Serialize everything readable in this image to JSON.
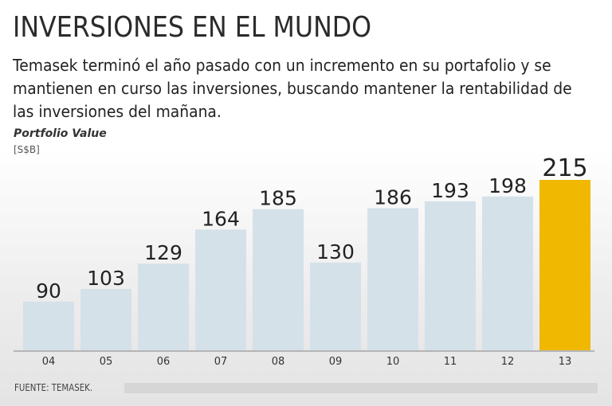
{
  "header": {
    "title": "INVERSIONES EN EL MUNDO",
    "subtitle": "Temasek terminó el año pasado con un incremento en su portafolio y se mantienen en curso las inversiones, buscando mantener la rentabilidad de las inversiones del mañana."
  },
  "chart_data": {
    "type": "bar",
    "title": "INVERSIONES EN EL MUNDO",
    "ylabel": "Portfolio Value",
    "yunit": "[S$B]",
    "xlabel": "",
    "categories": [
      "04",
      "05",
      "06",
      "07",
      "08",
      "09",
      "10",
      "11",
      "12",
      "13"
    ],
    "values": [
      90,
      103,
      129,
      164,
      185,
      130,
      186,
      193,
      198,
      215
    ],
    "ylim": [
      40,
      215
    ],
    "grid": false,
    "colors": {
      "bar": "#d5e1e8",
      "highlight": "#f0b800",
      "axis": "#b5b5b5"
    },
    "highlight_index": 9
  },
  "footer": {
    "source": "FUENTE: TEMASEK."
  }
}
